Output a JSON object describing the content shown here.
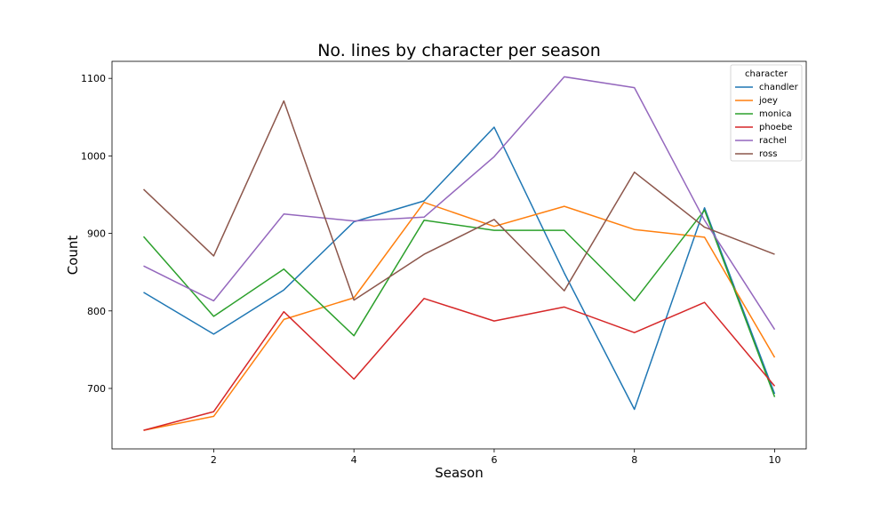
{
  "chart_data": {
    "type": "line",
    "title": "No. lines by character per season",
    "xlabel": "Season",
    "ylabel": "Count",
    "xlim": [
      0.55,
      10.45
    ],
    "ylim": [
      622,
      1122
    ],
    "xticks": [
      2,
      4,
      6,
      8,
      10
    ],
    "yticks": [
      700,
      800,
      900,
      1000,
      1100
    ],
    "x": [
      1,
      2,
      3,
      4,
      5,
      6,
      7,
      8,
      9,
      10
    ],
    "legend": {
      "title": "character",
      "position": "upper-right"
    },
    "series": [
      {
        "name": "chandler",
        "color": "#1f77b4",
        "values": [
          824,
          770,
          827,
          915,
          942,
          1037,
          849,
          673,
          933,
          693
        ]
      },
      {
        "name": "joey",
        "color": "#ff7f0e",
        "values": [
          646,
          664,
          789,
          817,
          940,
          909,
          935,
          905,
          895,
          740
        ]
      },
      {
        "name": "monica",
        "color": "#2ca02c",
        "values": [
          896,
          793,
          854,
          768,
          917,
          904,
          904,
          813,
          930,
          689
        ]
      },
      {
        "name": "phoebe",
        "color": "#d62728",
        "values": [
          646,
          670,
          799,
          712,
          816,
          787,
          805,
          772,
          811,
          703
        ]
      },
      {
        "name": "rachel",
        "color": "#9467bd",
        "values": [
          858,
          813,
          925,
          916,
          921,
          999,
          1102,
          1088,
          917,
          776
        ]
      },
      {
        "name": "ross",
        "color": "#8c564b",
        "values": [
          957,
          871,
          1071,
          814,
          873,
          918,
          826,
          979,
          908,
          873
        ]
      }
    ]
  }
}
